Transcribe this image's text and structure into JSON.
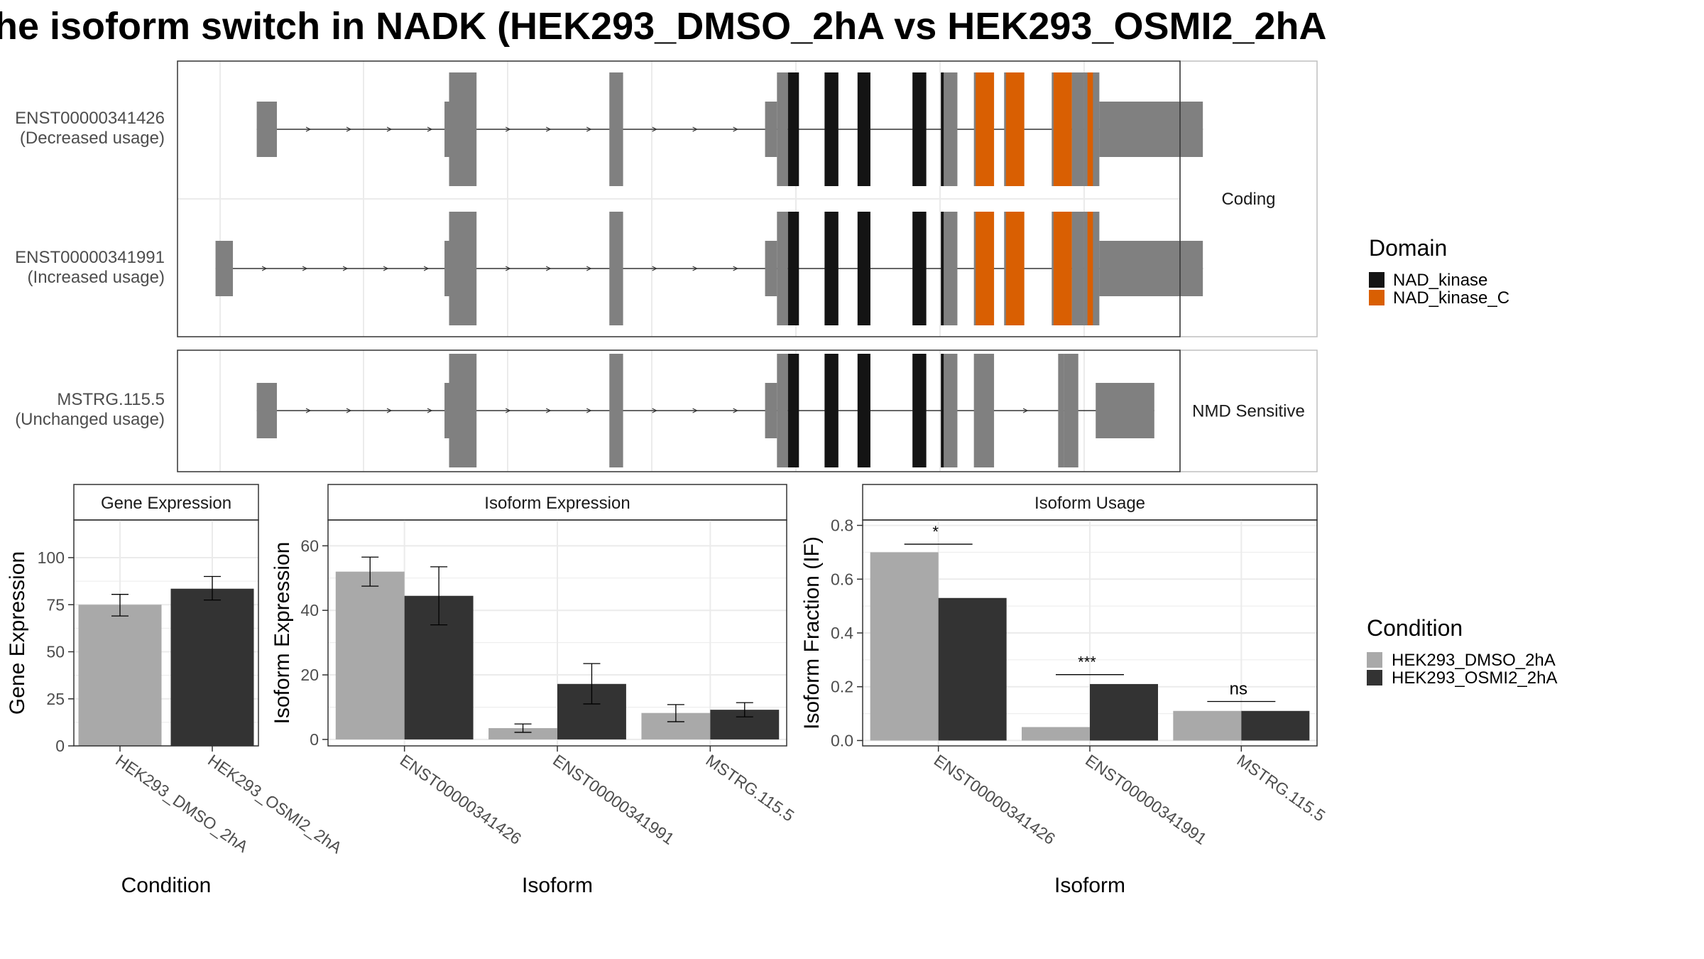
{
  "title": "he isoform switch in NADK (HEK293_DMSO_2hA vs HEK293_OSMI2_2hA",
  "colors": {
    "exon": "#808080",
    "nad_kinase": "#141414",
    "nad_kinase_c": "#D95F02",
    "dmso": "#A9A9A9",
    "osmi2": "#333333",
    "panel_border": "#333333",
    "strip_border": "#BFBFBF",
    "grid": "#EBEBEB"
  },
  "structure": {
    "genomic_range": [
      0,
      1000
    ],
    "groups": [
      {
        "strip": "Coding",
        "transcripts": [
          {
            "label_line1": "ENST00000341426",
            "label_line2": "(Decreased usage)",
            "utr": [
              [
                40,
                62
              ],
              [
                245,
                250
              ],
              [
                595,
                608
              ],
              [
                920,
                925
              ]
            ],
            "cds": [
              [
                250,
                280
              ],
              [
                425,
                440
              ],
              [
                608,
                620
              ],
              [
                660,
                675
              ],
              [
                696,
                710
              ],
              [
                756,
                771
              ],
              [
                787,
                805
              ],
              [
                823,
                845
              ],
              [
                856,
                878
              ],
              [
                908,
                930
              ],
              [
                930,
                943
              ],
              [
                943,
                960
              ]
            ],
            "utr3": [
              [
                960,
                1073
              ]
            ],
            "domains": [
              {
                "name": "NAD_kinase",
                "ranges": [
                  [
                    620,
                    632
                  ],
                  [
                    660,
                    675
                  ],
                  [
                    696,
                    710
                  ],
                  [
                    756,
                    771
                  ],
                  [
                    787,
                    790
                  ]
                ]
              },
              {
                "name": "NAD_kinase_C",
                "ranges": [
                  [
                    825,
                    845
                  ],
                  [
                    858,
                    878
                  ],
                  [
                    910,
                    930
                  ],
                  [
                    947,
                    953
                  ]
                ]
              }
            ]
          },
          {
            "label_line1": "ENST00000341991",
            "label_line2": "(Increased usage)",
            "utr": [
              [
                -5,
                14
              ],
              [
                245,
                250
              ],
              [
                595,
                608
              ],
              [
                920,
                925
              ]
            ],
            "cds": [
              [
                250,
                280
              ],
              [
                425,
                440
              ],
              [
                608,
                620
              ],
              [
                660,
                675
              ],
              [
                696,
                710
              ],
              [
                756,
                771
              ],
              [
                787,
                805
              ],
              [
                823,
                845
              ],
              [
                856,
                878
              ],
              [
                908,
                930
              ],
              [
                930,
                943
              ],
              [
                943,
                960
              ]
            ],
            "utr3": [
              [
                960,
                1073
              ]
            ],
            "domains": [
              {
                "name": "NAD_kinase",
                "ranges": [
                  [
                    620,
                    632
                  ],
                  [
                    660,
                    675
                  ],
                  [
                    696,
                    710
                  ],
                  [
                    756,
                    771
                  ],
                  [
                    787,
                    790
                  ]
                ]
              },
              {
                "name": "NAD_kinase_C",
                "ranges": [
                  [
                    825,
                    845
                  ],
                  [
                    858,
                    878
                  ],
                  [
                    910,
                    930
                  ],
                  [
                    947,
                    953
                  ]
                ]
              }
            ]
          }
        ]
      },
      {
        "strip": "NMD Sensitive",
        "transcripts": [
          {
            "label_line1": "MSTRG.115.5",
            "label_line2": "(Unchanged usage)",
            "utr": [
              [
                40,
                62
              ],
              [
                245,
                250
              ],
              [
                595,
                608
              ]
            ],
            "cds": [
              [
                250,
                280
              ],
              [
                425,
                440
              ],
              [
                608,
                620
              ],
              [
                660,
                675
              ],
              [
                696,
                710
              ],
              [
                756,
                771
              ],
              [
                787,
                805
              ],
              [
                823,
                845
              ],
              [
                915,
                921
              ],
              [
                921,
                937
              ]
            ],
            "utr3": [
              [
                956,
                1020
              ]
            ],
            "domains": [
              {
                "name": "NAD_kinase",
                "ranges": [
                  [
                    620,
                    632
                  ],
                  [
                    660,
                    675
                  ],
                  [
                    696,
                    710
                  ],
                  [
                    756,
                    771
                  ],
                  [
                    787,
                    790
                  ]
                ]
              }
            ]
          }
        ]
      }
    ],
    "domain_legend": {
      "title": "Domain",
      "entries": [
        "NAD_kinase",
        "NAD_kinase_C"
      ]
    }
  },
  "condition_legend": {
    "title": "Condition",
    "entries": [
      "HEK293_DMSO_2hA",
      "HEK293_OSMI2_2hA"
    ]
  },
  "chart_data": [
    {
      "type": "bar",
      "title": "Gene Expression",
      "xlabel": "Condition",
      "ylabel": "Gene Expression",
      "ylim": [
        0,
        120
      ],
      "yticks": [
        0,
        25,
        50,
        75,
        100
      ],
      "categories": [
        "HEK293_DMSO_2hA",
        "HEK293_OSMI2_2hA"
      ],
      "values": [
        75,
        83.5
      ],
      "errors": [
        [
          69,
          80.5
        ],
        [
          77.5,
          90
        ]
      ]
    },
    {
      "type": "bar",
      "title": "Isoform Expression",
      "xlabel": "Isoform",
      "ylabel": "Isoform Expression",
      "ylim": [
        -2,
        68
      ],
      "yticks": [
        0,
        20,
        40,
        60
      ],
      "categories": [
        "ENST00000341426",
        "ENST00000341991",
        "MSTRG.115.5"
      ],
      "series": [
        {
          "name": "HEK293_DMSO_2hA",
          "values": [
            52,
            3.5,
            8.2
          ],
          "errors": [
            [
              47.5,
              56.5
            ],
            [
              2.2,
              4.8
            ],
            [
              5.5,
              10.8
            ]
          ]
        },
        {
          "name": "HEK293_OSMI2_2hA",
          "values": [
            44.5,
            17.2,
            9.2
          ],
          "errors": [
            [
              35.5,
              53.5
            ],
            [
              11,
              23.5
            ],
            [
              7,
              11.4
            ]
          ]
        }
      ]
    },
    {
      "type": "bar",
      "title": "Isoform Usage",
      "xlabel": "Isoform",
      "ylabel": "Isoform Fraction (IF)",
      "ylim": [
        -0.02,
        0.82
      ],
      "yticks": [
        "0.0",
        "0.2",
        "0.4",
        "0.6",
        "0.8"
      ],
      "categories": [
        "ENST00000341426",
        "ENST00000341991",
        "MSTRG.115.5"
      ],
      "series": [
        {
          "name": "HEK293_DMSO_2hA",
          "values": [
            0.7,
            0.05,
            0.11
          ]
        },
        {
          "name": "HEK293_OSMI2_2hA",
          "values": [
            0.53,
            0.21,
            0.11
          ]
        }
      ],
      "significance": [
        "*",
        "***",
        "ns"
      ]
    }
  ]
}
